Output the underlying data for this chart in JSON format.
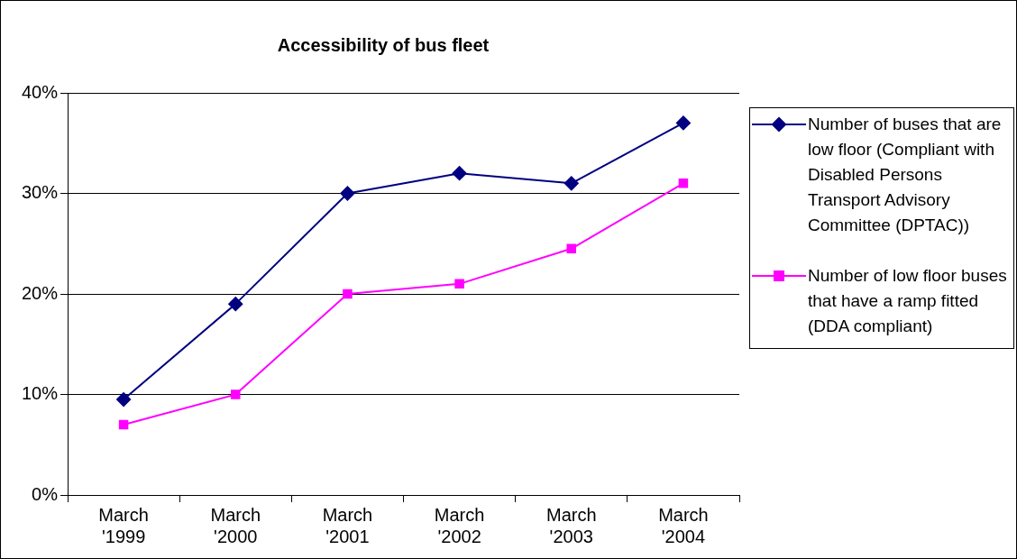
{
  "chart_data": {
    "type": "line",
    "title": "Accessibility of bus fleet",
    "categories": [
      "March '1999",
      "March '2000",
      "March '2001",
      "March '2002",
      "March '2003",
      "March '2004"
    ],
    "series": [
      {
        "name": "Number of buses that are low floor (Compliant with Disabled Persons Transport Advisory Committee (DPTAC))",
        "color": "#000080",
        "marker": "diamond",
        "values": [
          9.5,
          19,
          30,
          32,
          31,
          37
        ]
      },
      {
        "name": "Number of low floor buses that have a ramp fitted (DDA compliant)",
        "color": "#ff00ff",
        "marker": "square",
        "values": [
          7,
          10,
          20,
          21,
          24.5,
          31
        ]
      }
    ],
    "ylim": [
      0,
      40
    ],
    "yticks": [
      {
        "value": 0,
        "label": "0%"
      },
      {
        "value": 10,
        "label": "10%"
      },
      {
        "value": 20,
        "label": "20%"
      },
      {
        "value": 30,
        "label": "30%"
      },
      {
        "value": 40,
        "label": "40%"
      }
    ],
    "grid": "y",
    "legend": "right",
    "line_style": "solid"
  }
}
